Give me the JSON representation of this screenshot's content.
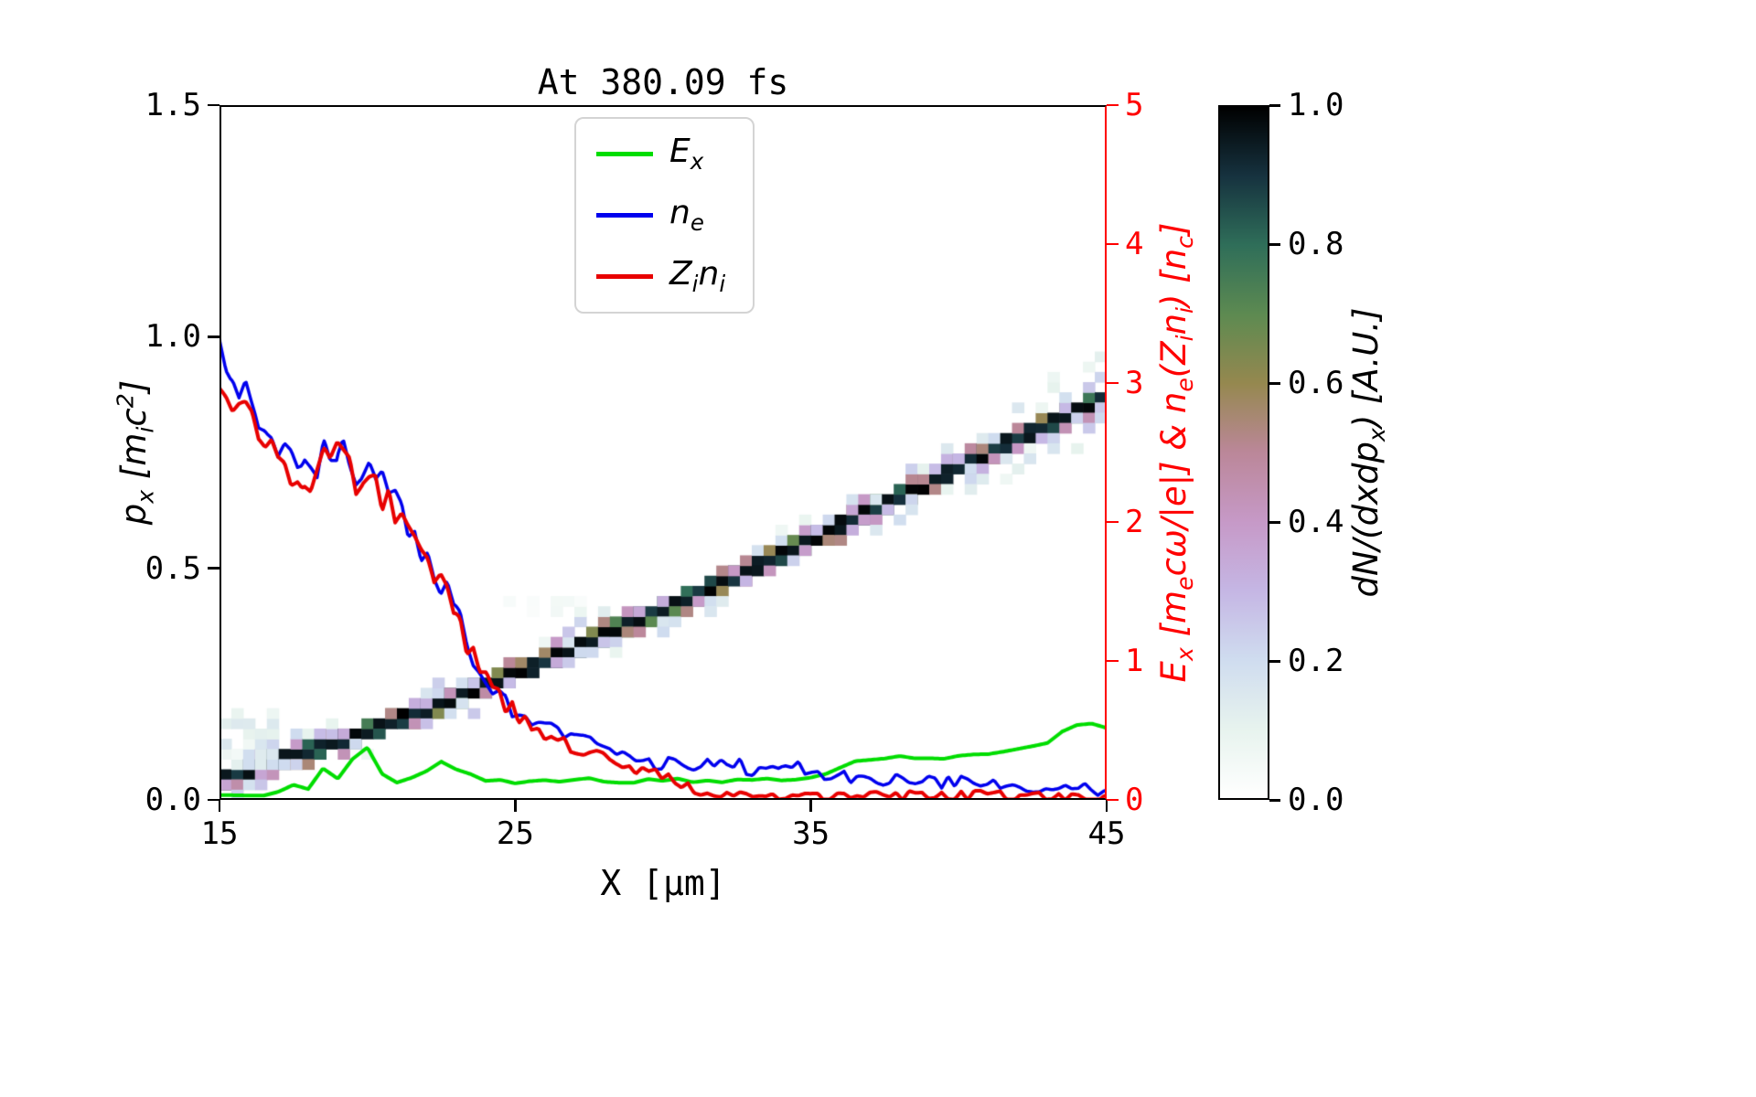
{
  "title": "At 380.09 fs",
  "chart_data": {
    "type": "line+heatmap",
    "title": "At 380.09 fs",
    "xlabel": "X [μm]",
    "ylabel_left": "p_{x} [m_{i}c^{2}]",
    "ylabel_right": "E_{x} [m_{e}cω/|e|] & n_{e}(Z_{i}n_{i}) [n_{c}]",
    "xlim": [
      15,
      45
    ],
    "ylim_left": [
      0.0,
      1.5
    ],
    "ylim_right": [
      0,
      5
    ],
    "x_ticks": [
      "15",
      "25",
      "35",
      "45"
    ],
    "y_ticks_left": [
      "0.0",
      "0.5",
      "1.0",
      "1.5"
    ],
    "y_ticks_right": [
      "0",
      "1",
      "2",
      "3",
      "4",
      "5"
    ],
    "axis_color_right": "#ff0000",
    "grid": false,
    "legend_position": "upper center",
    "legend": [
      {
        "series": "Ex",
        "label": "E_{x}",
        "color": "#00dd00"
      },
      {
        "series": "ne",
        "label": "n_{e}",
        "color": "#0000ee"
      },
      {
        "series": "Zini",
        "label": "Z_{i}n_{i}",
        "color": "#e80000"
      }
    ],
    "series": [
      {
        "name": "Ex",
        "axis": "right",
        "color": "#00dd00",
        "width": 4,
        "noise_amp": 0.02,
        "noise_scale": 0.5,
        "x": [
          15,
          16,
          17,
          17.5,
          18,
          18.5,
          19,
          19.5,
          20,
          20.5,
          21,
          21.5,
          22,
          22.5,
          23,
          23.5,
          24,
          25,
          26,
          27,
          28,
          29,
          30,
          31,
          32,
          33,
          34,
          35,
          36,
          36.5,
          37,
          38,
          39,
          40,
          41,
          42,
          43,
          43.5,
          44,
          44.5,
          45
        ],
        "y": [
          0.04,
          0.03,
          0.05,
          0.1,
          0.07,
          0.22,
          0.14,
          0.28,
          0.37,
          0.18,
          0.12,
          0.17,
          0.22,
          0.27,
          0.22,
          0.18,
          0.15,
          0.12,
          0.13,
          0.15,
          0.14,
          0.13,
          0.15,
          0.14,
          0.13,
          0.15,
          0.14,
          0.16,
          0.22,
          0.28,
          0.3,
          0.32,
          0.3,
          0.32,
          0.33,
          0.35,
          0.42,
          0.5,
          0.55,
          0.53,
          0.5
        ]
      },
      {
        "name": "ne",
        "axis": "right",
        "color": "#0000ee",
        "width": 3.5,
        "noise_amp": 0.07,
        "noise_scale": 0.22,
        "x": [
          15,
          15.4,
          15.8,
          16.2,
          16.6,
          17,
          17.4,
          17.8,
          18.2,
          18.6,
          19,
          19.4,
          19.8,
          20.2,
          20.6,
          21,
          21.4,
          21.8,
          22.2,
          22.6,
          23,
          23.4,
          23.8,
          24.2,
          24.6,
          25,
          25.5,
          26,
          26.5,
          27,
          27.5,
          28,
          28.5,
          29,
          29.5,
          30,
          31,
          32,
          33,
          34,
          35,
          36,
          37,
          38,
          39,
          40,
          41,
          42,
          43,
          44,
          45
        ],
        "y": [
          3.35,
          3.05,
          2.95,
          2.85,
          2.7,
          2.6,
          2.45,
          2.3,
          2.42,
          2.52,
          2.55,
          2.4,
          2.3,
          2.28,
          2.2,
          2.1,
          1.98,
          1.85,
          1.72,
          1.55,
          1.38,
          1.15,
          0.95,
          0.82,
          0.72,
          0.65,
          0.58,
          0.52,
          0.47,
          0.43,
          0.4,
          0.37,
          0.33,
          0.3,
          0.28,
          0.26,
          0.24,
          0.3,
          0.22,
          0.27,
          0.2,
          0.16,
          0.15,
          0.14,
          0.13,
          0.13,
          0.11,
          0.1,
          0.1,
          0.08,
          0.07
        ]
      },
      {
        "name": "Zini",
        "axis": "right",
        "color": "#e80000",
        "width": 4,
        "noise_amp": 0.065,
        "noise_scale": 0.22,
        "x": [
          15,
          15.4,
          15.8,
          16.2,
          16.6,
          17,
          17.4,
          17.8,
          18.2,
          18.6,
          19,
          19.4,
          19.8,
          20.2,
          20.6,
          21,
          21.4,
          21.8,
          22.2,
          22.6,
          23,
          23.4,
          23.8,
          24.2,
          24.6,
          25,
          25.5,
          26,
          26.5,
          27,
          27.5,
          28,
          28.5,
          29,
          29.5,
          30,
          31,
          32,
          33,
          34,
          35,
          36,
          37,
          38,
          39,
          40,
          41,
          42,
          43,
          44,
          45
        ],
        "y": [
          3.0,
          2.9,
          2.82,
          2.72,
          2.6,
          2.52,
          2.4,
          2.28,
          2.38,
          2.48,
          2.5,
          2.36,
          2.27,
          2.25,
          2.16,
          2.06,
          1.95,
          1.82,
          1.7,
          1.53,
          1.36,
          1.12,
          0.93,
          0.8,
          0.7,
          0.62,
          0.55,
          0.48,
          0.43,
          0.39,
          0.35,
          0.31,
          0.27,
          0.23,
          0.2,
          0.16,
          0.07,
          0.03,
          0.02,
          0.03,
          0.02,
          0.03,
          0.03,
          0.03,
          0.04,
          0.03,
          0.03,
          0.02,
          0.02,
          0.01,
          0.01
        ]
      }
    ],
    "phase_space_band": {
      "axis": "left",
      "x": [
        15,
        17,
        19,
        21,
        23,
        25,
        27,
        29,
        31,
        33,
        35,
        37,
        39,
        41,
        43,
        45
      ],
      "p": [
        0.03,
        0.075,
        0.115,
        0.16,
        0.21,
        0.26,
        0.315,
        0.375,
        0.43,
        0.49,
        0.55,
        0.615,
        0.675,
        0.74,
        0.8,
        0.86
      ],
      "cell_dx": 0.4,
      "cell_dp": 0.022
    },
    "colorbar": {
      "label": "dN/(dxdp_{x}) [A.U.]",
      "ticks": [
        "0.0",
        "0.2",
        "0.4",
        "0.6",
        "0.8",
        "1.0"
      ],
      "range": [
        0.0,
        1.0
      ],
      "stops": [
        {
          "v": 0.0,
          "c": "#ffffff"
        },
        {
          "v": 0.1,
          "c": "#e7f3ee"
        },
        {
          "v": 0.2,
          "c": "#cfdcef"
        },
        {
          "v": 0.3,
          "c": "#c5b6e4"
        },
        {
          "v": 0.4,
          "c": "#c699c7"
        },
        {
          "v": 0.5,
          "c": "#bb8799"
        },
        {
          "v": 0.6,
          "c": "#95884f"
        },
        {
          "v": 0.7,
          "c": "#5d8a51"
        },
        {
          "v": 0.8,
          "c": "#2f6e59"
        },
        {
          "v": 0.9,
          "c": "#16323f"
        },
        {
          "v": 1.0,
          "c": "#000000"
        }
      ]
    },
    "noise_seed": 42
  }
}
